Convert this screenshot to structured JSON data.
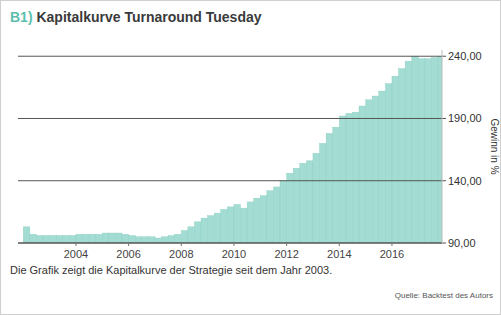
{
  "chart_data": {
    "type": "bar",
    "title": "B1) Kapitalkurve Turnaround Tuesday",
    "y_label": "Gewinn in %",
    "caption": "Die Grafik zeigt die Kapitalkurve der Strategie seit dem Jahr 2003.",
    "source": "Quelle: Backtest des Autors",
    "x": [
      2002,
      2002.25,
      2002.5,
      2002.75,
      2003,
      2003.25,
      2003.5,
      2003.75,
      2004,
      2004.25,
      2004.5,
      2004.75,
      2005,
      2005.25,
      2005.5,
      2005.75,
      2006,
      2006.25,
      2006.5,
      2006.75,
      2007,
      2007.25,
      2007.5,
      2007.75,
      2008,
      2008.25,
      2008.5,
      2008.75,
      2009,
      2009.25,
      2009.5,
      2009.75,
      2010,
      2010.25,
      2010.5,
      2010.75,
      2011,
      2011.25,
      2011.5,
      2011.75,
      2012,
      2012.25,
      2012.5,
      2012.75,
      2013,
      2013.25,
      2013.5,
      2013.75,
      2014,
      2014.25,
      2014.5,
      2014.75,
      2015,
      2015.25,
      2015.5,
      2015.75,
      2016,
      2016.25,
      2016.5,
      2016.75,
      2017,
      2017.25,
      2017.5,
      2017.75
    ],
    "values": [
      103,
      97,
      96,
      96,
      96,
      96,
      96,
      96,
      97,
      97,
      97,
      97,
      98,
      98,
      98,
      97,
      96,
      95,
      95,
      95,
      94,
      95,
      96,
      97,
      100,
      103,
      107,
      110,
      112,
      114,
      117,
      119,
      121,
      118,
      123,
      126,
      128,
      132,
      135,
      140,
      146,
      150,
      154,
      156,
      162,
      170,
      178,
      183,
      192,
      194,
      195,
      200,
      205,
      208,
      212,
      218,
      224,
      230,
      236,
      240,
      238,
      238,
      239,
      240
    ],
    "color": "#a3dcd2",
    "xlim": [
      2001.8,
      2017.9
    ],
    "xticks": [
      2004,
      2006,
      2008,
      2010,
      2012,
      2014,
      2016
    ],
    "ylim": [
      90,
      245
    ],
    "yticks": [
      {
        "value": 90,
        "label": "90,00"
      },
      {
        "value": 140,
        "label": "140,00"
      },
      {
        "value": 190,
        "label": "190,00"
      },
      {
        "value": 240,
        "label": "240,00"
      }
    ],
    "grid": true
  }
}
